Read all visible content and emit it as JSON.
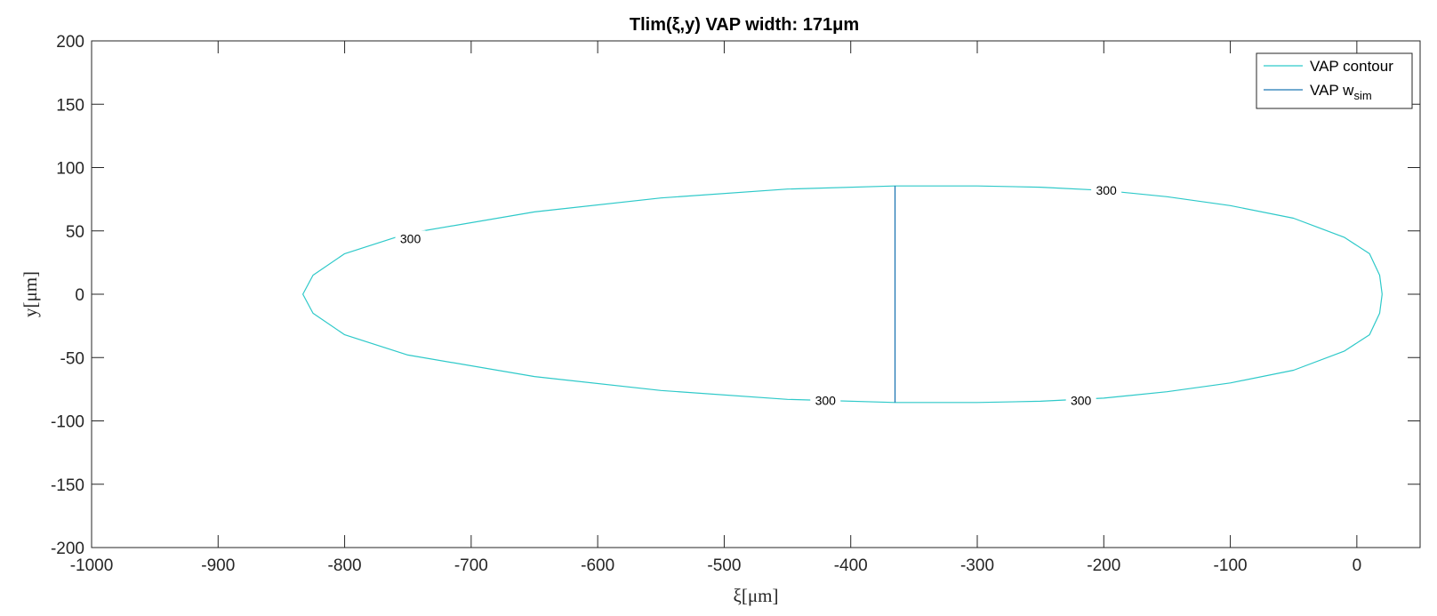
{
  "chart_data": {
    "type": "line",
    "title": "Tlim(ξ,y) VAP width: 171μm",
    "xlabel": "ξ[μm]",
    "ylabel": "y[μm]",
    "xlim": [
      -1000,
      50
    ],
    "ylim": [
      -200,
      200
    ],
    "xticks": [
      -1000,
      -900,
      -800,
      -700,
      -600,
      -500,
      -400,
      -300,
      -200,
      -100,
      0
    ],
    "yticks": [
      -200,
      -150,
      -100,
      -50,
      0,
      50,
      100,
      150,
      200
    ],
    "grid": false,
    "legend_position": "top-right",
    "series": [
      {
        "name": "VAP contour",
        "color": "#2ec9c9",
        "level": 300,
        "points": [
          [
            20,
            0
          ],
          [
            18,
            15
          ],
          [
            10,
            32
          ],
          [
            -10,
            45
          ],
          [
            -50,
            60
          ],
          [
            -100,
            70
          ],
          [
            -150,
            77
          ],
          [
            -200,
            82
          ],
          [
            -250,
            84.5
          ],
          [
            -300,
            85.5
          ],
          [
            -365,
            85.5
          ],
          [
            -450,
            83
          ],
          [
            -550,
            76
          ],
          [
            -650,
            65
          ],
          [
            -750,
            48
          ],
          [
            -800,
            32
          ],
          [
            -825,
            15
          ],
          [
            -833,
            0
          ],
          [
            -825,
            -15
          ],
          [
            -800,
            -32
          ],
          [
            -750,
            -48
          ],
          [
            -650,
            -65
          ],
          [
            -550,
            -76
          ],
          [
            -450,
            -83
          ],
          [
            -365,
            -85.5
          ],
          [
            -300,
            -85.5
          ],
          [
            -250,
            -84.5
          ],
          [
            -200,
            -82
          ],
          [
            -150,
            -77
          ],
          [
            -100,
            -70
          ],
          [
            -50,
            -60
          ],
          [
            -10,
            -45
          ],
          [
            10,
            -32
          ],
          [
            18,
            -15
          ],
          [
            20,
            0
          ]
        ],
        "contour_labels": [
          {
            "text": "300",
            "x": -748,
            "y": 44
          },
          {
            "text": "300",
            "x": -198,
            "y": 82
          },
          {
            "text": "300",
            "x": -420,
            "y": -84
          },
          {
            "text": "300",
            "x": -218,
            "y": -84
          }
        ]
      },
      {
        "name": "VAP w",
        "name_subscript": "sim",
        "color": "#1f77b4",
        "x": [
          -365,
          -365
        ],
        "y": [
          -85.5,
          85.5
        ]
      }
    ]
  }
}
